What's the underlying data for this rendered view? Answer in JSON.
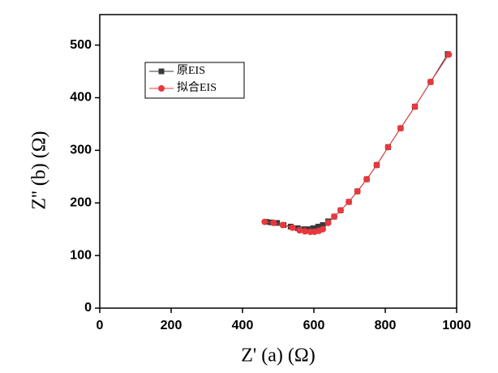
{
  "chart_data": {
    "type": "line",
    "xlabel": "Z' (a) (Ω)",
    "ylabel": "Z'' (b) (Ω)",
    "xlim": [
      0,
      1000
    ],
    "xticks": [
      0,
      200,
      400,
      600,
      800,
      1000
    ],
    "ylim": [
      0,
      558
    ],
    "yticks": [
      0,
      100,
      200,
      300,
      400,
      500
    ],
    "legend": "upper left",
    "series": [
      {
        "name": "原EIS",
        "color": "#3a3a3a",
        "marker": "square",
        "x": [
          467,
          480,
          497,
          515,
          535,
          555,
          572,
          585,
          598,
          612,
          625,
          640,
          657,
          675,
          698,
          722,
          748,
          776,
          808,
          843,
          883,
          927,
          975
        ],
        "values": [
          164,
          163,
          162,
          158,
          155,
          152,
          150,
          150,
          152,
          155,
          158,
          165,
          174,
          186,
          202,
          222,
          245,
          272,
          306,
          342,
          383,
          430,
          483
        ]
      },
      {
        "name": "拟合EIS",
        "color": "#e8383d",
        "marker": "circle",
        "x": [
          462,
          487,
          513,
          540,
          560,
          575,
          590,
          602,
          614,
          625,
          640,
          657,
          675,
          698,
          722,
          748,
          776,
          808,
          843,
          883,
          927,
          978
        ],
        "values": [
          164,
          162,
          158,
          153,
          148,
          146,
          145,
          145,
          147,
          150,
          162,
          174,
          186,
          202,
          222,
          245,
          272,
          306,
          342,
          383,
          430,
          482
        ]
      }
    ]
  }
}
